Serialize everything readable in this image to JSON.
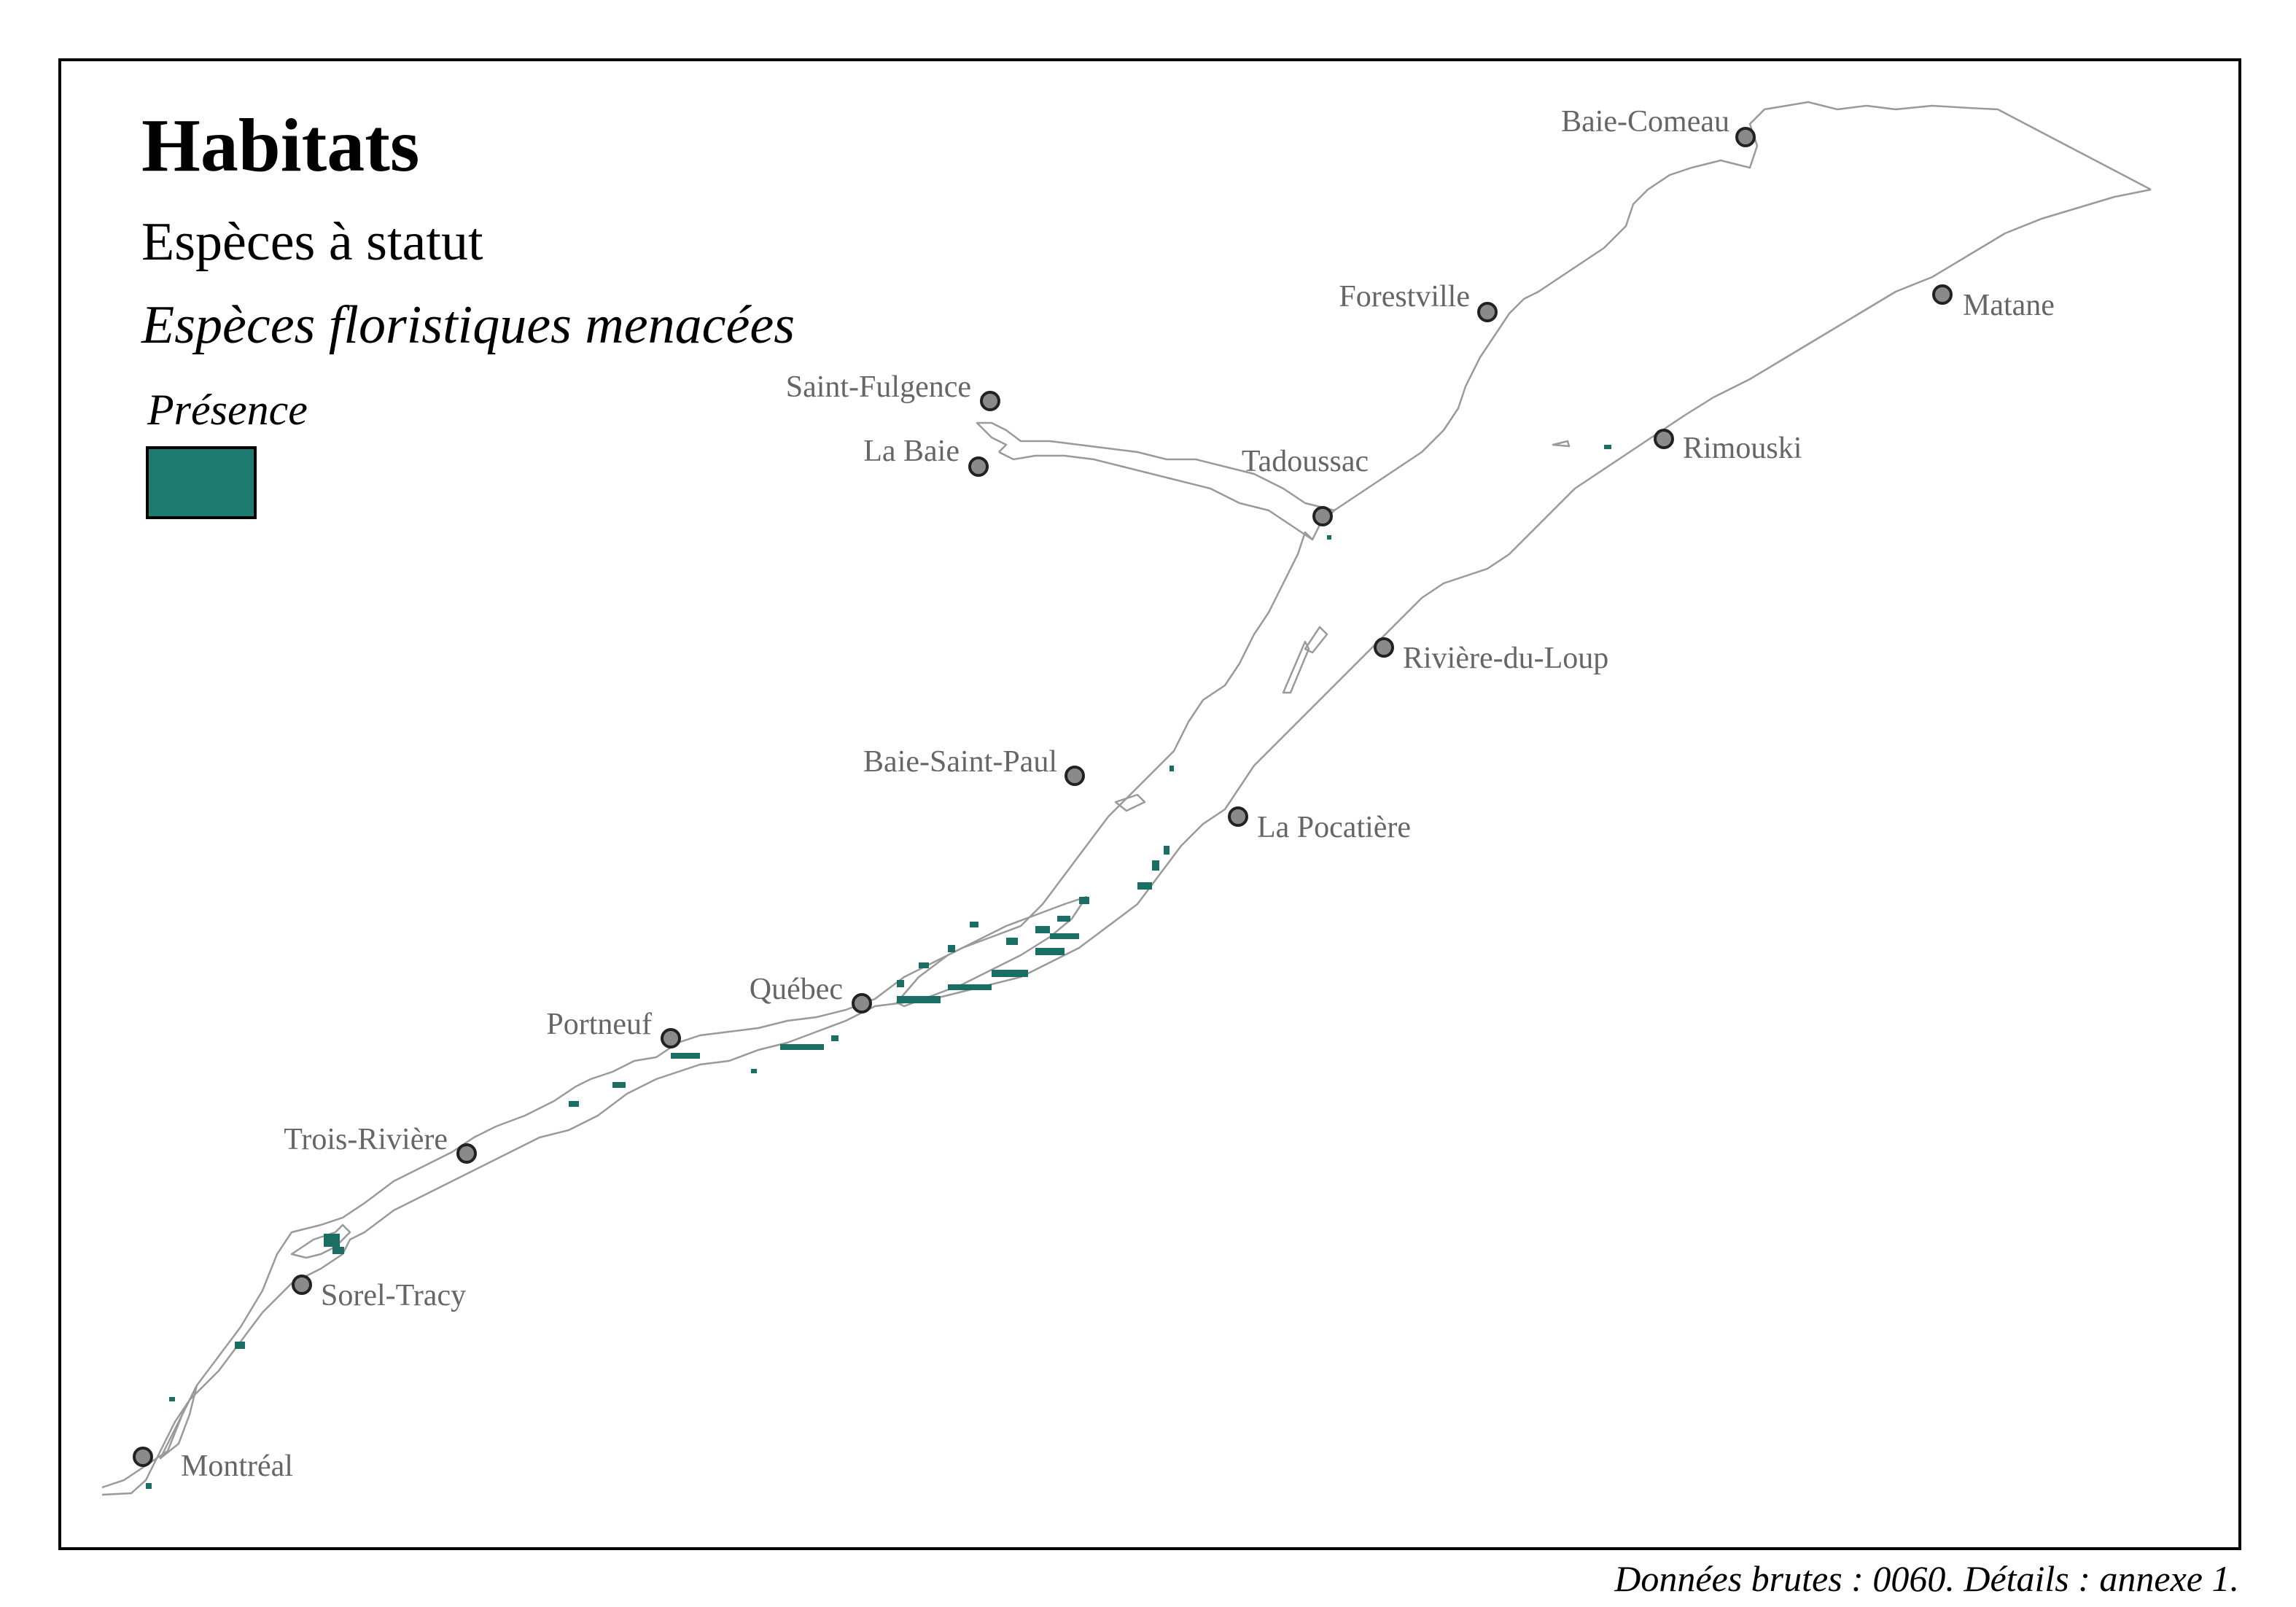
{
  "title": "Habitats",
  "subtitle": "Espèces à statut",
  "subtitle_italic": "Espèces floristiques menacées",
  "legend": {
    "title": "Présence",
    "color": "#1f7a6f"
  },
  "source_note": "Données brutes : 0060. Détails : annexe 1.",
  "colors": {
    "coastline": "#9a9a9a",
    "city_marker": "#8a8a8a",
    "city_label": "#666666",
    "presence": "#1a6e64"
  },
  "cities": [
    {
      "name": "Baie-Comeau"
    },
    {
      "name": "Forestville"
    },
    {
      "name": "Matane"
    },
    {
      "name": "Saint-Fulgence"
    },
    {
      "name": "La Baie"
    },
    {
      "name": "Tadoussac"
    },
    {
      "name": "Rimouski"
    },
    {
      "name": "Rivière-du-Loup"
    },
    {
      "name": "Baie-Saint-Paul"
    },
    {
      "name": "La Pocatière"
    },
    {
      "name": "Québec"
    },
    {
      "name": "Portneuf"
    },
    {
      "name": "Trois-Rivière"
    },
    {
      "name": "Sorel-Tracy"
    },
    {
      "name": "Montréal"
    }
  ]
}
